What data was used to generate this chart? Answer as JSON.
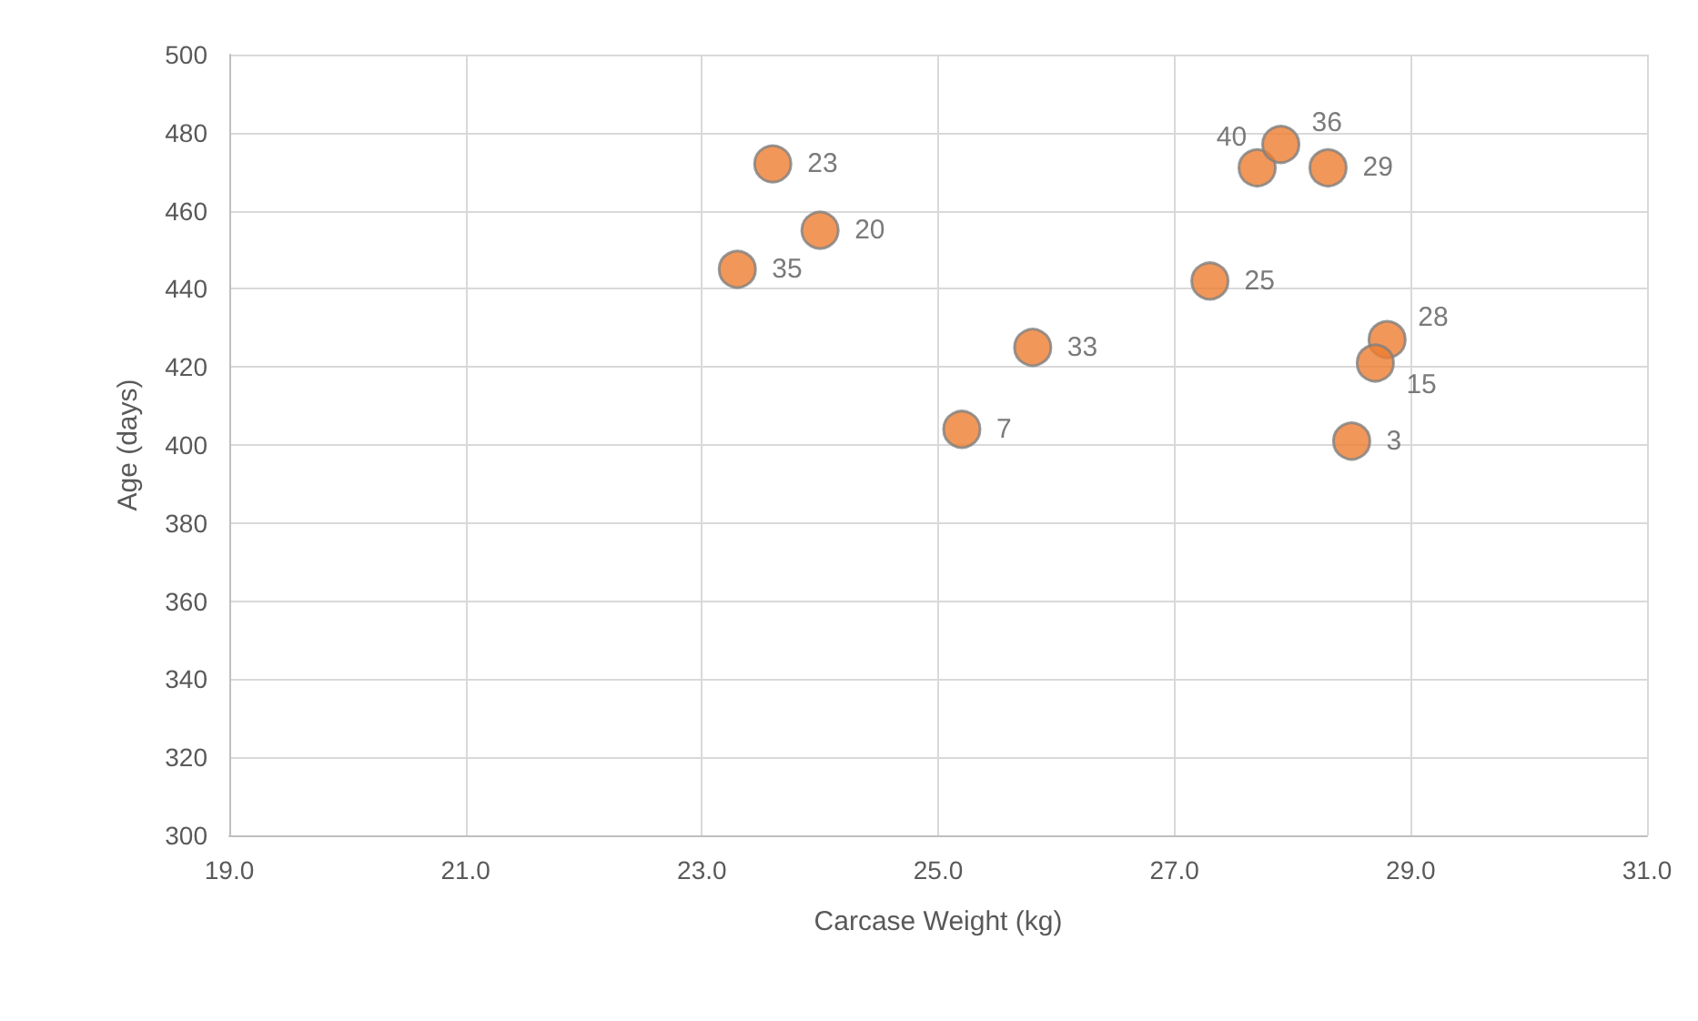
{
  "chart_data": {
    "type": "scatter",
    "xlabel": "Carcase Weight (kg)",
    "ylabel": "Age (days)",
    "x": [
      23.6,
      24.0,
      23.3,
      25.8,
      25.2,
      27.3,
      27.7,
      27.9,
      28.3,
      28.8,
      28.7,
      28.5
    ],
    "values": [
      472,
      455,
      445,
      425,
      404,
      442,
      471,
      477,
      471,
      427,
      421,
      401
    ],
    "color": "#ed7d31",
    "marker": "circle",
    "grid": true,
    "xlim": [
      19,
      31
    ],
    "xticks": [
      {
        "value": 19,
        "label": "19.0"
      },
      {
        "value": 21,
        "label": "21.0"
      },
      {
        "value": 23,
        "label": "23.0"
      },
      {
        "value": 25,
        "label": "25.0"
      },
      {
        "value": 27,
        "label": "27.0"
      },
      {
        "value": 29,
        "label": "29.0"
      },
      {
        "value": 31,
        "label": "31.0"
      }
    ],
    "ylim": [
      300,
      500
    ],
    "yticks": [
      300,
      320,
      340,
      360,
      380,
      400,
      420,
      440,
      460,
      480,
      500
    ],
    "annotations": [
      {
        "text": "23",
        "x": 23.6,
        "y": 472
      },
      {
        "text": "20",
        "x": 24.0,
        "y": 455
      },
      {
        "text": "35",
        "x": 23.3,
        "y": 445
      },
      {
        "text": "33",
        "x": 25.8,
        "y": 425
      },
      {
        "text": "7",
        "x": 25.2,
        "y": 404
      },
      {
        "text": "25",
        "x": 27.3,
        "y": 442
      },
      {
        "text": "40",
        "x": 27.7,
        "y": 471
      },
      {
        "text": "36",
        "x": 27.9,
        "y": 477
      },
      {
        "text": "29",
        "x": 28.3,
        "y": 471
      },
      {
        "text": "28",
        "x": 28.8,
        "y": 427
      },
      {
        "text": "15",
        "x": 28.7,
        "y": 421
      },
      {
        "text": "3",
        "x": 28.5,
        "y": 401
      }
    ]
  }
}
